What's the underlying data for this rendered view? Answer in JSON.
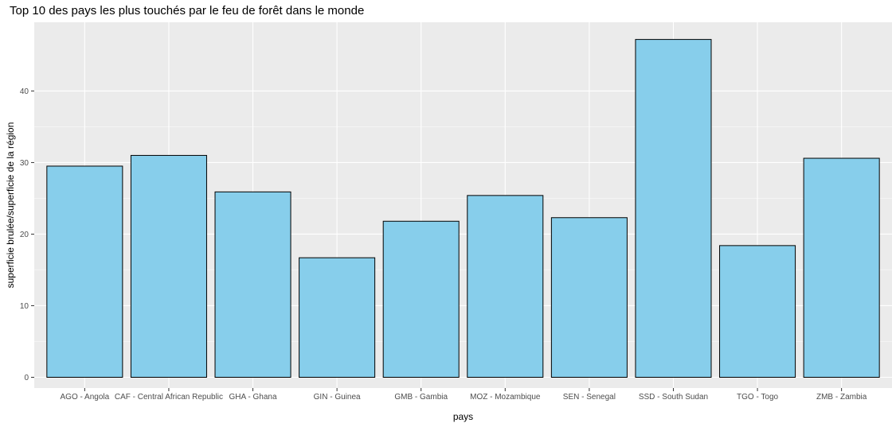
{
  "chart_data": {
    "type": "bar",
    "title": "Top 10 des pays les plus touchés par le feu de forêt dans le monde",
    "xlabel": "pays",
    "ylabel": "superficie brulée/superficie de la région",
    "categories": [
      "AGO - Angola",
      "CAF - Central African Republic",
      "GHA - Ghana",
      "GIN - Guinea",
      "GMB - Gambia",
      "MOZ - Mozambique",
      "SEN - Senegal",
      "SSD - South Sudan",
      "TGO - Togo",
      "ZMB - Zambia"
    ],
    "values": [
      29.5,
      31.0,
      25.9,
      16.7,
      21.8,
      25.4,
      22.3,
      47.2,
      18.4,
      30.6
    ],
    "ylim": [
      -1.5,
      49.6
    ],
    "yticks": [
      0,
      10,
      20,
      30,
      40
    ],
    "grid": true,
    "colors": {
      "panel_background": "#ebebeb",
      "grid_major": "#ffffff",
      "bar_fill": "#87ceeb",
      "bar_outline": "#000000",
      "tick_label": "#4d4d4d",
      "tick_mark": "#333333"
    }
  }
}
